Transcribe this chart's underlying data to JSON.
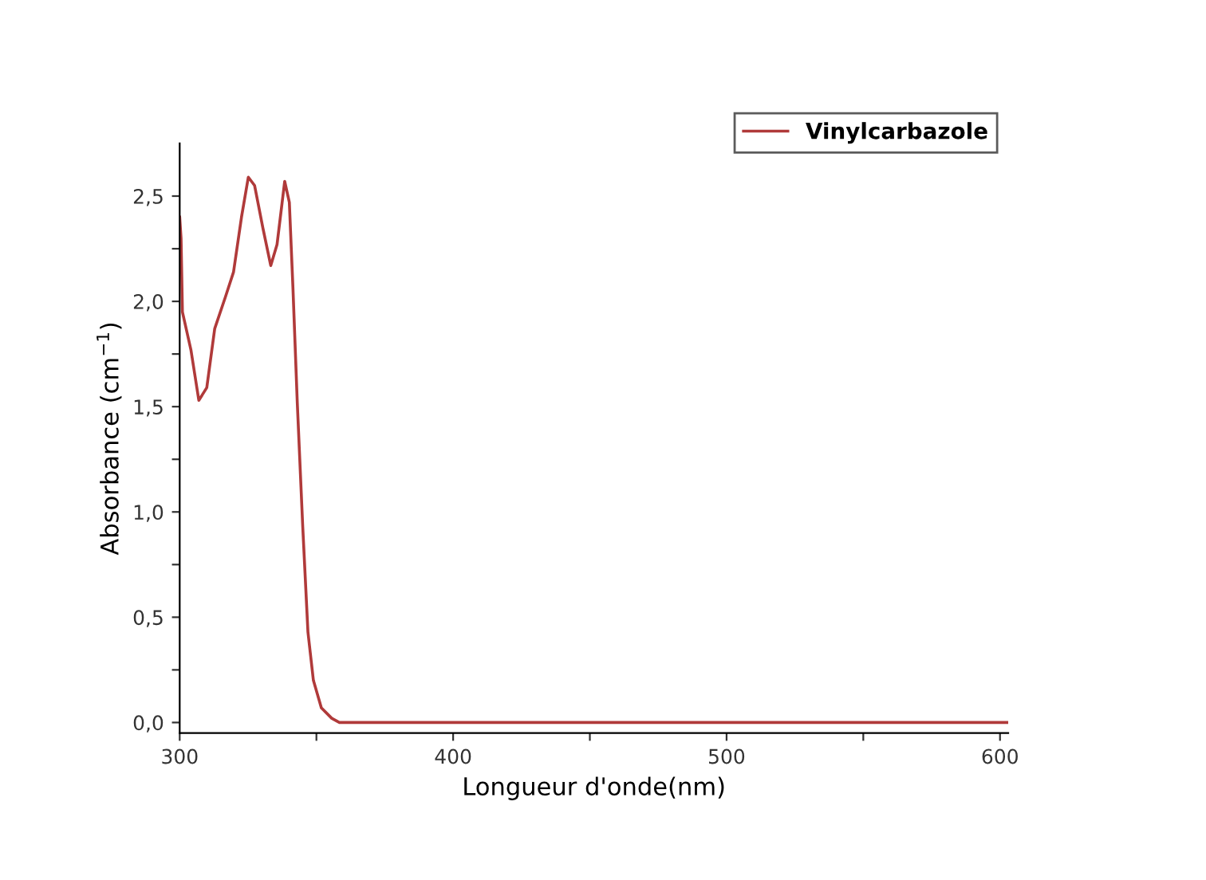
{
  "chart_data": {
    "type": "line",
    "xlabel": "Longueur d'onde(nm)",
    "ylabel": "Absorbance (cm$^{−1}$)",
    "series": [
      {
        "name": "Vinylcarbazole",
        "color": "#b03a3a",
        "x": [
          300,
          300.5,
          301,
          304.1,
          307,
          309.9,
          312.8,
          316.7,
          319.7,
          322.6,
          325.1,
          327.4,
          330.4,
          333.3,
          335.6,
          338.4,
          340.1,
          341.4,
          343.0,
          345.0,
          346.9,
          348.9,
          351.8,
          355.6,
          358.4,
          380,
          450,
          520,
          603
        ],
        "values": [
          2.4,
          2.3,
          1.95,
          1.77,
          1.53,
          1.59,
          1.87,
          2.02,
          2.14,
          2.4,
          2.59,
          2.55,
          2.35,
          2.17,
          2.27,
          2.57,
          2.47,
          2.07,
          1.52,
          0.93,
          0.43,
          0.2,
          0.07,
          0.02,
          0.0,
          0.0,
          0.0,
          0.0,
          0.0
        ]
      }
    ],
    "xlim": [
      300,
      603
    ],
    "ylim": [
      -0.05,
      2.75
    ],
    "xticks": [
      300,
      {
        "value": 350,
        "label": null
      },
      400,
      {
        "value": 450,
        "label": null
      },
      500,
      {
        "value": 550,
        "label": null
      },
      600
    ],
    "yticks": [
      {
        "value": 0,
        "label": "0,0"
      },
      {
        "value": 0.25,
        "label": null
      },
      {
        "value": 0.5,
        "label": "0,5"
      },
      {
        "value": 0.75,
        "label": null
      },
      {
        "value": 1.0,
        "label": "1,0"
      },
      {
        "value": 1.25,
        "label": null
      },
      {
        "value": 1.5,
        "label": "1,5"
      },
      {
        "value": 1.75,
        "label": null
      },
      {
        "value": 2.0,
        "label": "2,0"
      },
      {
        "value": 2.25,
        "label": null
      },
      {
        "value": 2.5,
        "label": "2,5"
      }
    ],
    "grid": false,
    "legend": "top right",
    "marker": "none",
    "line_style": "solid"
  }
}
